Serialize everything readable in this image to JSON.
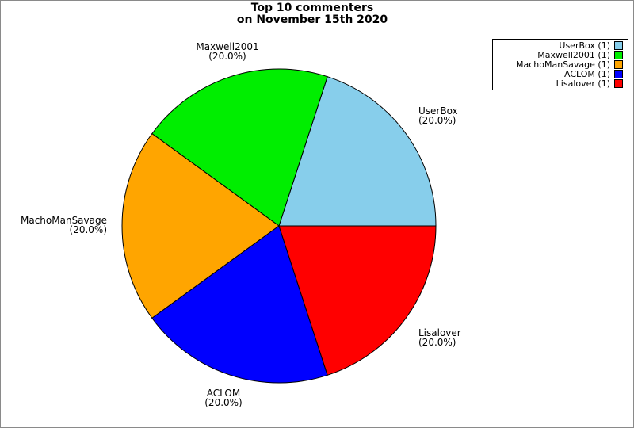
{
  "title": {
    "text": "Top 10 commenters\non November 15th 2020"
  },
  "chart_data": {
    "type": "pie",
    "title": "Top 10 commenters on November 15th 2020",
    "start_angle_deg": 0,
    "direction": "counterclockwise",
    "legend_position": "upper right",
    "slices": [
      {
        "name": "UserBox",
        "value": 1,
        "percent": 20.0,
        "pct_label": "(20.0%)",
        "legend_label": "UserBox (1)",
        "color": "#87CEEB"
      },
      {
        "name": "Maxwell2001",
        "value": 1,
        "percent": 20.0,
        "pct_label": "(20.0%)",
        "legend_label": "Maxwell2001 (1)",
        "color": "#00EE00"
      },
      {
        "name": "MachoManSavage",
        "value": 1,
        "percent": 20.0,
        "pct_label": "(20.0%)",
        "legend_label": "MachoManSavage (1)",
        "color": "#FFA500"
      },
      {
        "name": "ACLOM",
        "value": 1,
        "percent": 20.0,
        "pct_label": "(20.0%)",
        "legend_label": "ACLOM (1)",
        "color": "#0000FF"
      },
      {
        "name": "Lisalover",
        "value": 1,
        "percent": 20.0,
        "pct_label": "(20.0%)",
        "legend_label": "Lisalover (1)",
        "color": "#FF0000"
      }
    ],
    "edge_color": "#000000"
  }
}
